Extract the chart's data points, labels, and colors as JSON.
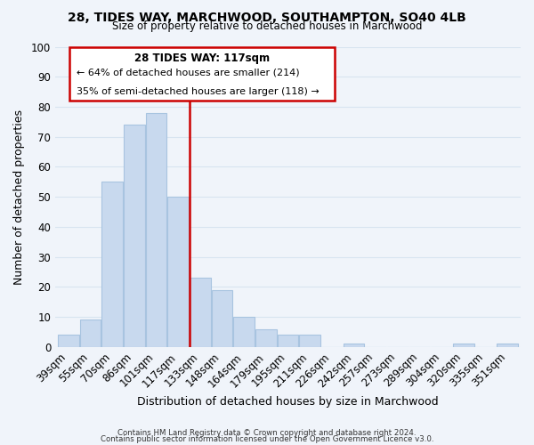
{
  "title1": "28, TIDES WAY, MARCHWOOD, SOUTHAMPTON, SO40 4LB",
  "title2": "Size of property relative to detached houses in Marchwood",
  "xlabel": "Distribution of detached houses by size in Marchwood",
  "ylabel": "Number of detached properties",
  "bar_color": "#c8d9ee",
  "bar_edge_color": "#a8c4e0",
  "vline_color": "#cc0000",
  "categories": [
    "39sqm",
    "55sqm",
    "70sqm",
    "86sqm",
    "101sqm",
    "117sqm",
    "133sqm",
    "148sqm",
    "164sqm",
    "179sqm",
    "195sqm",
    "211sqm",
    "226sqm",
    "242sqm",
    "257sqm",
    "273sqm",
    "289sqm",
    "304sqm",
    "320sqm",
    "335sqm",
    "351sqm"
  ],
  "values": [
    4,
    9,
    55,
    74,
    78,
    50,
    23,
    19,
    10,
    6,
    4,
    4,
    0,
    1,
    0,
    0,
    0,
    0,
    1,
    0,
    1
  ],
  "ylim": [
    0,
    100
  ],
  "yticks": [
    0,
    10,
    20,
    30,
    40,
    50,
    60,
    70,
    80,
    90,
    100
  ],
  "annotation_title": "28 TIDES WAY: 117sqm",
  "annotation_line1": "← 64% of detached houses are smaller (214)",
  "annotation_line2": "35% of semi-detached houses are larger (118) →",
  "footer1": "Contains HM Land Registry data © Crown copyright and database right 2024.",
  "footer2": "Contains public sector information licensed under the Open Government Licence v3.0.",
  "grid_color": "#d8e4f0",
  "background_color": "#f0f4fa"
}
